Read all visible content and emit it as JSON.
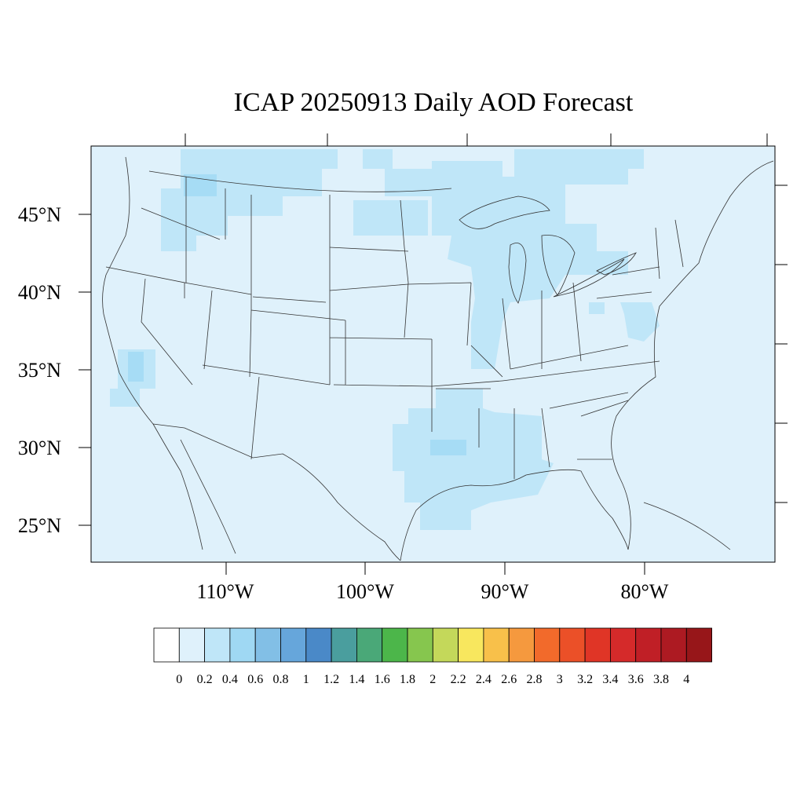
{
  "title": "ICAP 20250913 Daily AOD Forecast",
  "lat_labels": [
    "45°N",
    "40°N",
    "35°N",
    "30°N",
    "25°N"
  ],
  "lon_labels": [
    "110°W",
    "100°W",
    "90°W",
    "80°W"
  ],
  "colorbar": {
    "labels": [
      "0",
      "0.2",
      "0.4",
      "0.6",
      "0.8",
      "1",
      "1.2",
      "1.4",
      "1.6",
      "1.8",
      "2",
      "2.2",
      "2.4",
      "2.6",
      "2.8",
      "3",
      "3.2",
      "3.4",
      "3.6",
      "3.8",
      "4"
    ],
    "colors": [
      "#ffffff",
      "#dff1fb",
      "#bfe6f8",
      "#9fd8f3",
      "#82bfe6",
      "#66a6db",
      "#4a89c8",
      "#4a9e9e",
      "#4aa878",
      "#4cb64a",
      "#86c64e",
      "#c4d85a",
      "#f8e75e",
      "#f8c04a",
      "#f5993e",
      "#f26a2b",
      "#eb5028",
      "#e03526",
      "#d52a2a",
      "#c01f26",
      "#ad1a22",
      "#971619"
    ]
  },
  "field_colors": {
    "background": "#dff1fb",
    "elevated": "#bfe6f8",
    "high": "#a6dcf5"
  }
}
